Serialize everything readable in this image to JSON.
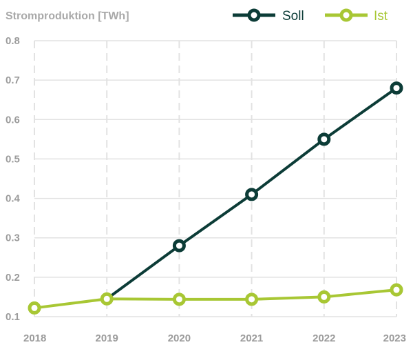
{
  "chart_data": {
    "type": "line",
    "ylabel": "Stromproduktion [TWh]",
    "x": [
      "2018",
      "2019",
      "2020",
      "2021",
      "2022",
      "2023"
    ],
    "ylim": [
      0.1,
      0.8
    ],
    "yticks": [
      "0.1",
      "0.2",
      "0.3",
      "0.4",
      "0.5",
      "0.6",
      "0.7",
      "0.8"
    ],
    "series": [
      {
        "name": "Soll",
        "color": "#0c3c37",
        "values": [
          null,
          0.145,
          0.28,
          0.41,
          0.55,
          0.68
        ]
      },
      {
        "name": "Ist",
        "color": "#a8c734",
        "values": [
          0.122,
          0.145,
          0.144,
          0.144,
          0.15,
          0.168
        ]
      }
    ],
    "legend": "top-right"
  }
}
